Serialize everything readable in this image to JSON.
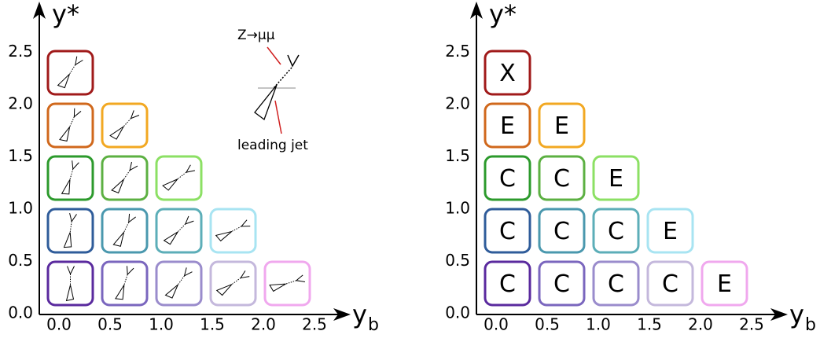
{
  "annotation": {
    "top": "Z→μμ",
    "bottom": "leading jet"
  },
  "panels": [
    {
      "y_label": "y*",
      "x_label": "y",
      "x_label_sub": "b",
      "x_ticks": [
        "0.0",
        "0.5",
        "1.0",
        "1.5",
        "2.0",
        "2.5"
      ],
      "y_ticks": [
        "0.0",
        "0.5",
        "1.0",
        "1.5",
        "2.0",
        "2.5"
      ],
      "rows": [
        [
          {
            "color": "#5a2a9e"
          },
          {
            "color": "#7a66be"
          },
          {
            "color": "#9a8ccc"
          },
          {
            "color": "#c4b8dc"
          },
          {
            "color": "#f0a8ee"
          }
        ],
        [
          {
            "color": "#2f5c9a"
          },
          {
            "color": "#4a98ae"
          },
          {
            "color": "#5caeb8"
          },
          {
            "color": "#a8e4f2"
          }
        ],
        [
          {
            "color": "#2c9a2c"
          },
          {
            "color": "#5cb042"
          },
          {
            "color": "#8ce064"
          }
        ],
        [
          {
            "color": "#d0681c"
          },
          {
            "color": "#f2a822"
          }
        ],
        [
          {
            "color": "#a01a1a"
          }
        ]
      ]
    },
    {
      "y_label": "y*",
      "x_label": "y",
      "x_label_sub": "b",
      "x_ticks": [
        "0.0",
        "0.5",
        "1.0",
        "1.5",
        "2.0",
        "2.5"
      ],
      "y_ticks": [
        "0.0",
        "0.5",
        "1.0",
        "1.5",
        "2.0",
        "2.5"
      ],
      "rows": [
        [
          {
            "color": "#5a2a9e",
            "label": "C"
          },
          {
            "color": "#7a66be",
            "label": "C"
          },
          {
            "color": "#9a8ccc",
            "label": "C"
          },
          {
            "color": "#c4b8dc",
            "label": "C"
          },
          {
            "color": "#f0a8ee",
            "label": "E"
          }
        ],
        [
          {
            "color": "#2f5c9a",
            "label": "C"
          },
          {
            "color": "#4a98ae",
            "label": "C"
          },
          {
            "color": "#5caeb8",
            "label": "C"
          },
          {
            "color": "#a8e4f2",
            "label": "E"
          }
        ],
        [
          {
            "color": "#2c9a2c",
            "label": "C"
          },
          {
            "color": "#5cb042",
            "label": "C"
          },
          {
            "color": "#8ce064",
            "label": "E"
          }
        ],
        [
          {
            "color": "#d0681c",
            "label": "E"
          },
          {
            "color": "#f2a822",
            "label": "E"
          }
        ],
        [
          {
            "color": "#a01a1a",
            "label": "X"
          }
        ]
      ]
    }
  ]
}
